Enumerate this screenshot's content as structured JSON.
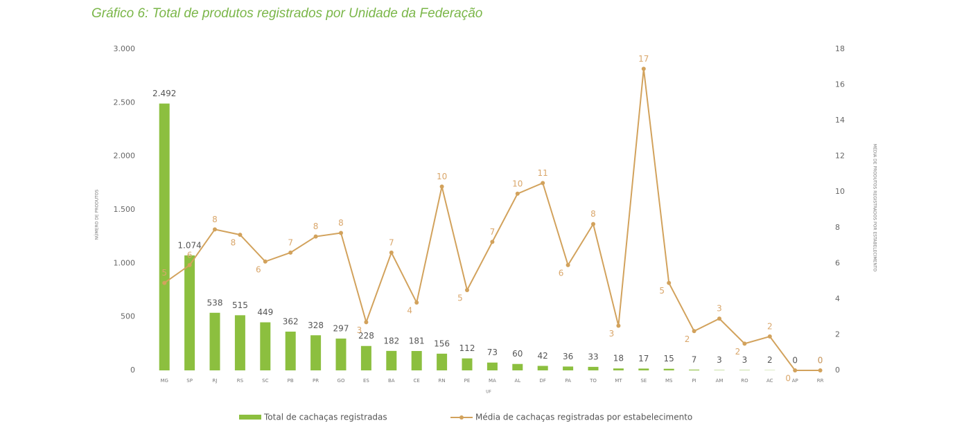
{
  "chart_data": {
    "type": "bar-line",
    "title": "Gráfico 6: Total de produtos registrados por Unidade da Federação",
    "ylabel": "NÚMERO DE PRODUTOS",
    "xlabel": "UF",
    "y2label": "MÉDIA DE PRODUTOS REGISTRADOS POR ESTABELECIMENTO",
    "categories": [
      "MG",
      "SP",
      "RJ",
      "RS",
      "SC",
      "PB",
      "PR",
      "GO",
      "ES",
      "BA",
      "CE",
      "RN",
      "PE",
      "MA",
      "AL",
      "DF",
      "PA",
      "TO",
      "MT",
      "SE",
      "MS",
      "PI",
      "AM",
      "RO",
      "AC",
      "AP",
      "RR"
    ],
    "series": [
      {
        "name": "Total de cachaças registradas",
        "type": "bar",
        "color": "#8cbf3f",
        "values": [
          2492,
          1074,
          538,
          515,
          449,
          362,
          328,
          297,
          228,
          182,
          181,
          156,
          112,
          73,
          60,
          42,
          36,
          33,
          18,
          17,
          15,
          7,
          3,
          3,
          2,
          0,
          0
        ],
        "value_labels": [
          "2.492",
          "1.074",
          "538",
          "515",
          "449",
          "362",
          "328",
          "297",
          "228",
          "182",
          "181",
          "156",
          "112",
          "73",
          "60",
          "42",
          "36",
          "33",
          "18",
          "17",
          "15",
          "7",
          "3",
          "3",
          "2",
          "0",
          "0"
        ]
      },
      {
        "name": "Média de cachaças registradas por estabelecimento",
        "type": "line",
        "axis": "y2",
        "color": "#d2a25c",
        "values": [
          4.9,
          5.9,
          7.9,
          7.6,
          6.1,
          6.6,
          7.5,
          7.7,
          2.7,
          6.6,
          3.8,
          10.3,
          4.5,
          7.2,
          9.9,
          10.5,
          5.9,
          8.2,
          2.5,
          16.9,
          4.9,
          2.2,
          2.9,
          1.5,
          1.9,
          0,
          0
        ],
        "value_labels": [
          "5",
          "6",
          "8",
          "8",
          "6",
          "7",
          "8",
          "8",
          "3",
          "7",
          "4",
          "10",
          "5",
          "7",
          "10",
          "11",
          "6",
          "8",
          "3",
          "17",
          "5",
          "2",
          "3",
          "2",
          "2",
          "0",
          "0"
        ]
      }
    ],
    "ylim": [
      0,
      3000
    ],
    "yticks": [
      0,
      500,
      {
        "value": 1000,
        "label": "1.000"
      },
      {
        "value": 1500,
        "label": "1.500"
      },
      {
        "value": 2000,
        "label": "2.000"
      },
      {
        "value": 2500,
        "label": "2.500"
      },
      {
        "value": 3000,
        "label": "3.000"
      }
    ],
    "y2lim": [
      0,
      18
    ],
    "y2ticks": [
      0,
      2,
      4,
      6,
      8,
      10,
      12,
      14,
      16,
      18
    ],
    "legend": "bottom"
  }
}
